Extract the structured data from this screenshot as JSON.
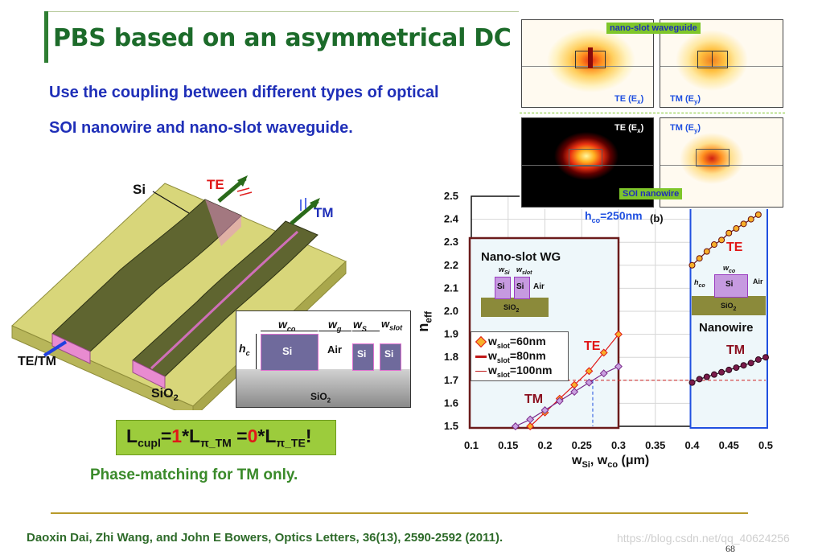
{
  "slide": {
    "title": "PBS based on an asymmetrical DC",
    "subtitle_line1": "Use the coupling between different types of optical",
    "subtitle_line2": "SOI nanowire and nano-slot waveguide.",
    "reference": "Daoxin Dai, Zhi Wang, and John E Bowers, Optics Letters, 36(13), 2590-2592 (2011).",
    "watermark": "https://blog.csdn.net/qq_40624256",
    "page_number": "68",
    "phase_text": "Phase-matching for TM only."
  },
  "device": {
    "si_label": "Si",
    "te_label": "TE",
    "tm_label": "TM",
    "input_label": "TE/TM",
    "sio2_label": "SiO",
    "sio2_sub": "2"
  },
  "cross_section": {
    "w_co": "w",
    "w_co_sub": "co",
    "w_g": "w",
    "w_g_sub": "g",
    "w_s": "w",
    "w_s_sub": "S",
    "w_slot": "w",
    "w_slot_sub": "slot",
    "h_c": "h",
    "h_c_sub": "c",
    "si": "Si",
    "air": "Air",
    "sio2": "SiO",
    "sio2_sub": "2"
  },
  "formula": {
    "l": "L",
    "cupl": "cupl",
    "eq1": "=",
    "one": "1",
    "star1": "*L",
    "pi1": "π_TM",
    "eq2": " =",
    "zero": "0",
    "star2": "*L",
    "pi2": "π_TE",
    "bang": "!"
  },
  "mode_panels": {
    "slot_title": "nano-slot waveguide",
    "nanowire_title": "SOI nanowire",
    "te_ex": "TE (E",
    "te_ex_sub": "x",
    "tm_ey": "TM (E",
    "tm_ey_sub": "y",
    "close_paren": ")"
  },
  "chart_data": {
    "type": "line",
    "xlabel_w": "w",
    "xlabel_si": "Si",
    "xlabel_mid": ", w",
    "xlabel_co": "co",
    "xlabel_unit": " (μm)",
    "ylabel_n": "n",
    "ylabel_sub": "eff",
    "xlim": [
      0.1,
      0.5
    ],
    "ylim": [
      1.5,
      2.5
    ],
    "x_ticks": [
      "0.1",
      "0.15",
      "0.2",
      "0.25",
      "0.3",
      "0.35",
      "0.4",
      "0.45",
      "0.5"
    ],
    "y_ticks": [
      "1.5",
      "1.6",
      "1.7",
      "1.8",
      "1.9",
      "2.0",
      "2.1",
      "2.2",
      "2.3",
      "2.4",
      "2.5"
    ],
    "grid": true,
    "hco_annotation": "h",
    "hco_annotation_sub": "co",
    "hco_value": "=250nm",
    "panel_b": "(b)",
    "slot_box_title": "Nano-slot WG",
    "nanowire_box_title": "Nanowire",
    "te_label": "TE",
    "tm_label": "TM",
    "inset_si": "Si",
    "inset_air": "Air",
    "inset_sio2": "SiO",
    "inset_sio2_sub": "2",
    "inset_wsi": "w",
    "inset_wsi_sub": "Si",
    "inset_wslot": "w",
    "inset_wslot_sub": "slot",
    "inset_wco": "w",
    "inset_wco_sub": "co",
    "inset_hco": "h",
    "inset_hco_sub": "co",
    "legend": [
      {
        "name_w": "w",
        "name_sub": "slot",
        "name_val": "=60nm"
      },
      {
        "name_w": "w",
        "name_sub": "slot",
        "name_val": "=80nm"
      },
      {
        "name_w": "w",
        "name_sub": "slot",
        "name_val": "=100nm"
      }
    ],
    "reference_neff": 1.7,
    "reference_x": 0.265,
    "series": [
      {
        "name": "Nanowire TE",
        "x": [
          0.4,
          0.41,
          0.42,
          0.43,
          0.44,
          0.45,
          0.46,
          0.47,
          0.48,
          0.49
        ],
        "y": [
          2.2,
          2.23,
          2.26,
          2.29,
          2.31,
          2.34,
          2.36,
          2.38,
          2.4,
          2.42
        ]
      },
      {
        "name": "Nanowire TM",
        "x": [
          0.4,
          0.41,
          0.42,
          0.43,
          0.44,
          0.45,
          0.46,
          0.47,
          0.48,
          0.49,
          0.5
        ],
        "y": [
          1.69,
          1.705,
          1.715,
          1.725,
          1.735,
          1.745,
          1.755,
          1.765,
          1.775,
          1.79,
          1.8
        ]
      },
      {
        "name": "Slot TE 60nm",
        "x": [
          0.18,
          0.2,
          0.22,
          0.24,
          0.26,
          0.28,
          0.3
        ],
        "y": [
          1.5,
          1.56,
          1.62,
          1.68,
          1.74,
          1.82,
          1.9
        ]
      },
      {
        "name": "Slot TM 60nm",
        "x": [
          0.16,
          0.18,
          0.2,
          0.22,
          0.24,
          0.26,
          0.28,
          0.3
        ],
        "y": [
          1.5,
          1.53,
          1.57,
          1.61,
          1.65,
          1.69,
          1.73,
          1.76
        ]
      }
    ]
  }
}
